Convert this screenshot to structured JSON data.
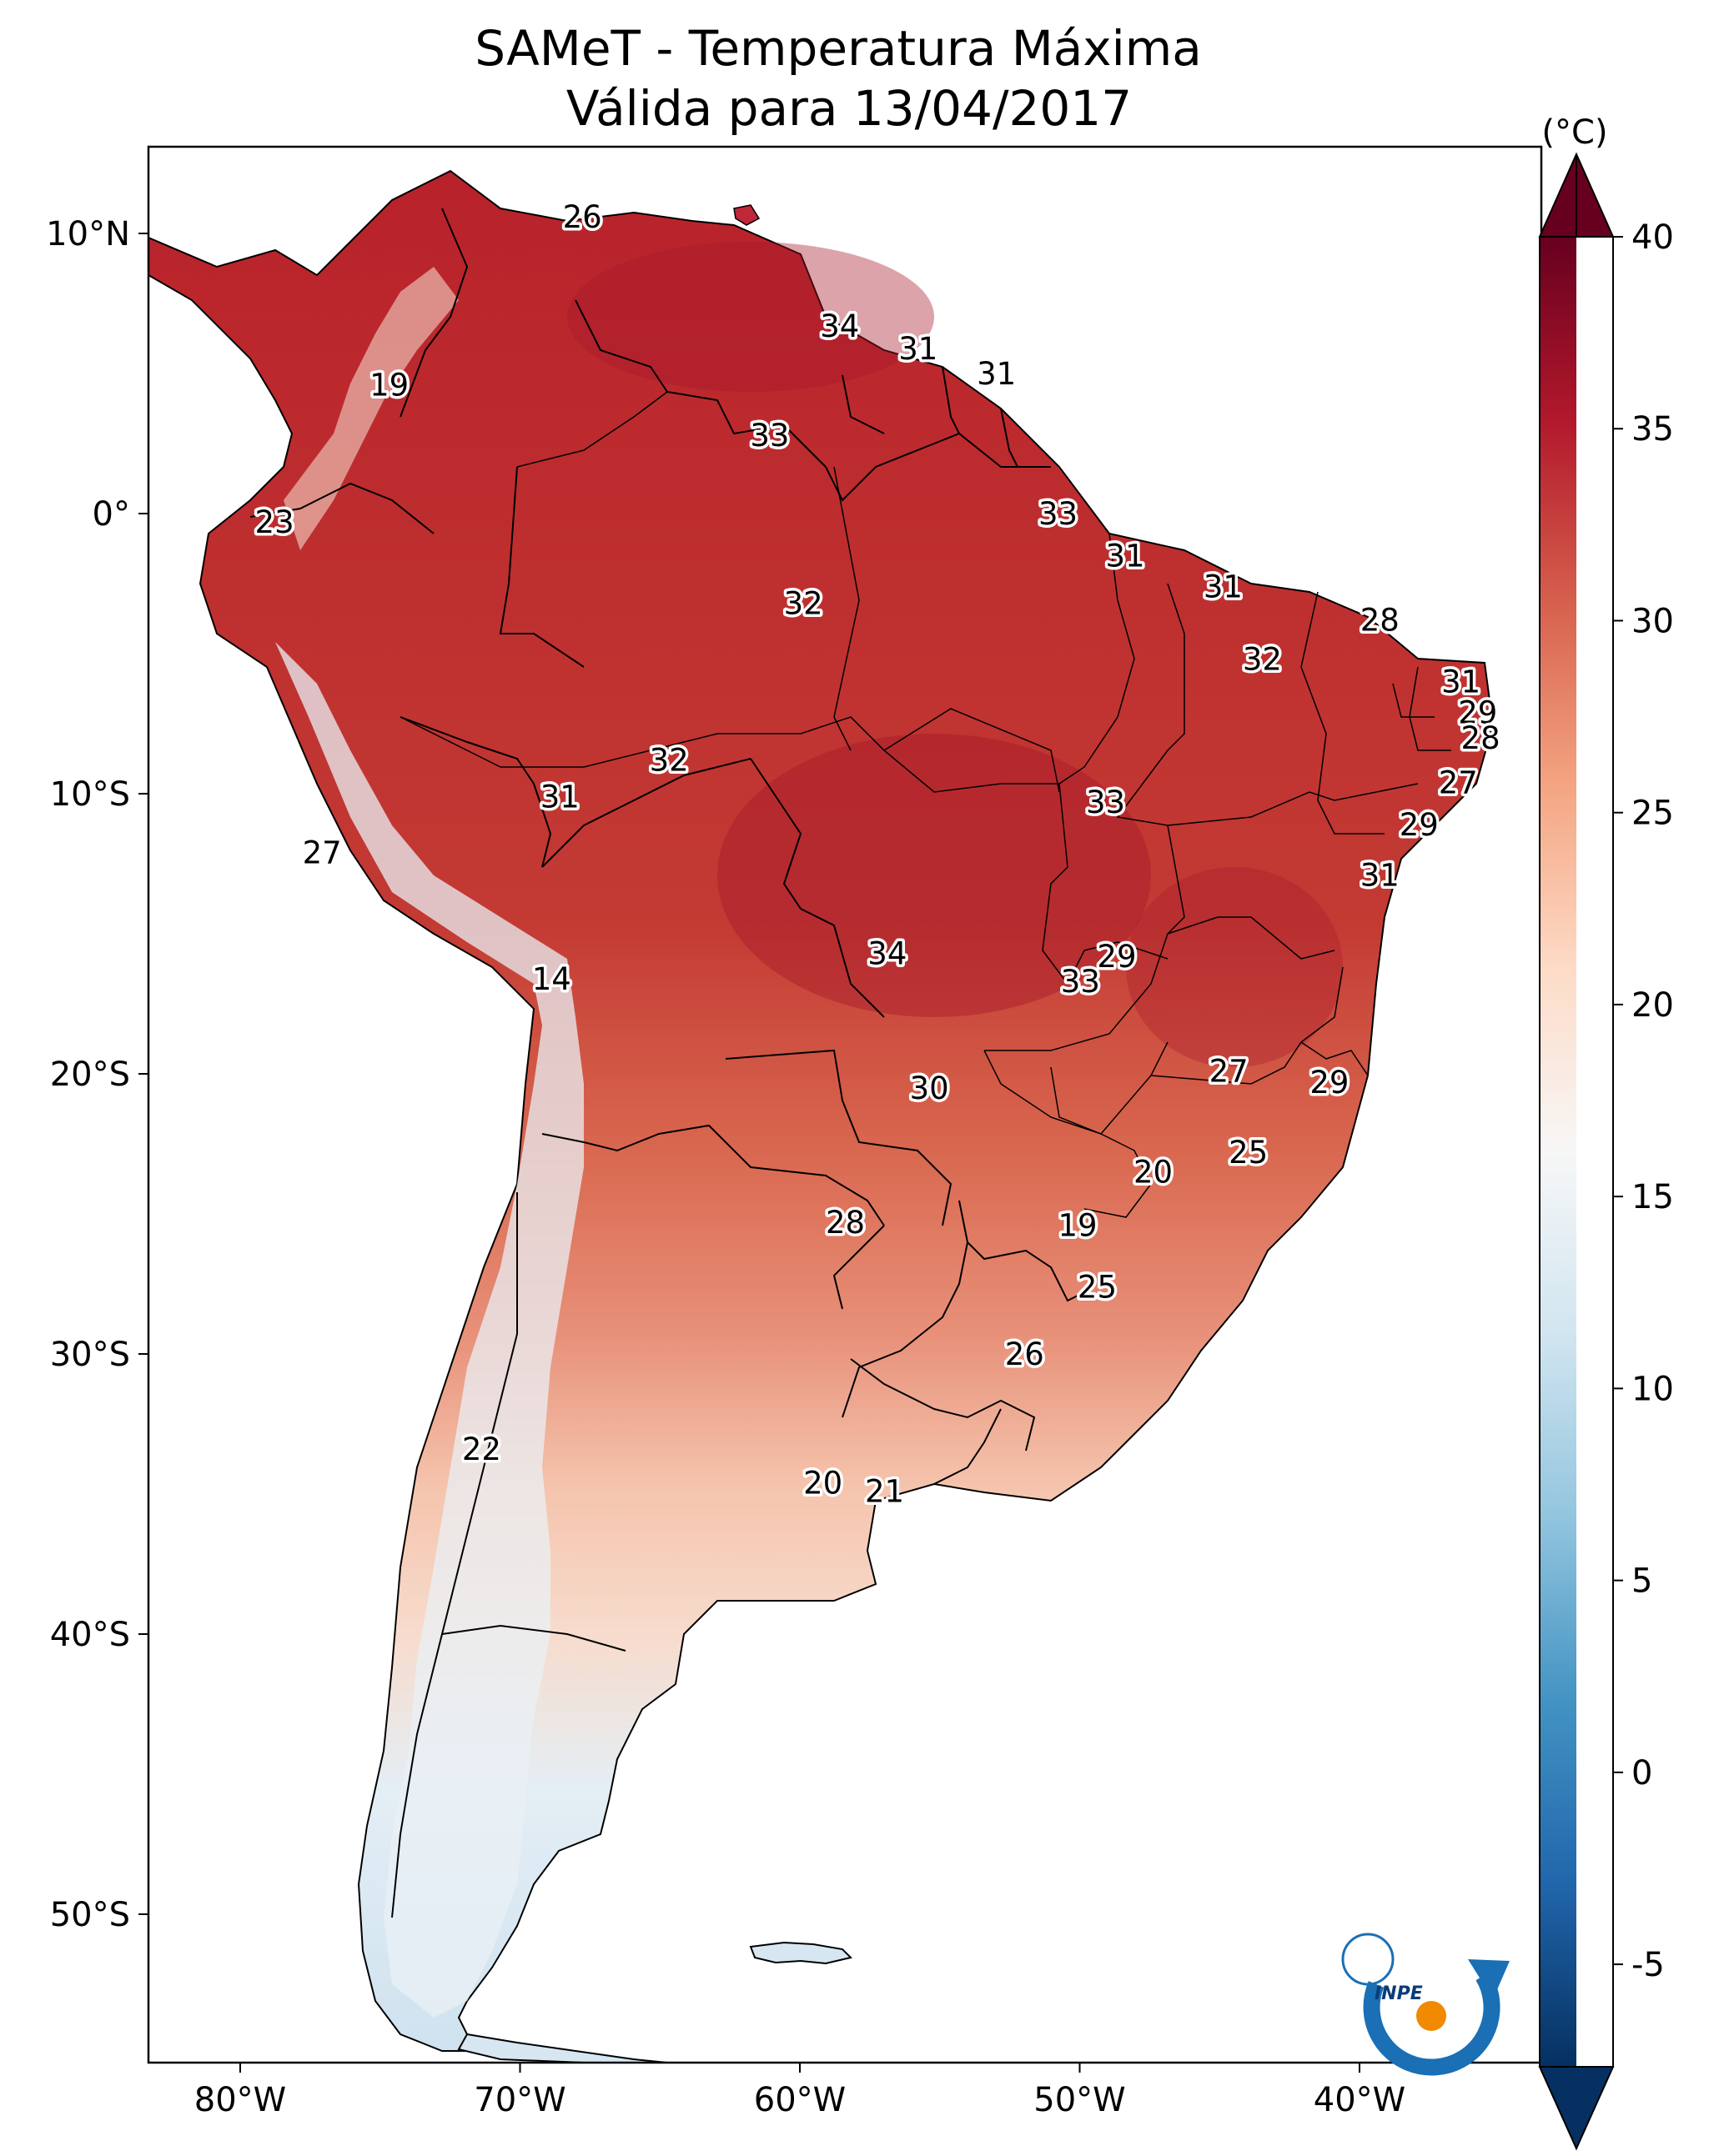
{
  "title_line1": "SAMeT - Temperatura Máxima",
  "title_line2": "Válida para 13/04/2017",
  "colorbar": {
    "unit_label": "(°C)",
    "ticks": [
      "40",
      "35",
      "30",
      "25",
      "20",
      "15",
      "10",
      "5",
      "0",
      "-5"
    ],
    "range": [
      -5,
      40
    ],
    "colors": [
      "#053061",
      "#2166ac",
      "#4393c3",
      "#92c5de",
      "#d1e5f0",
      "#f7f7f7",
      "#fddbc7",
      "#f4a582",
      "#d6604d",
      "#b2182b",
      "#67001f"
    ]
  },
  "axes": {
    "lat_labels": [
      "10°N",
      "0°",
      "10°S",
      "20°S",
      "30°S",
      "40°S",
      "50°S"
    ],
    "lon_labels": [
      "80°W",
      "70°W",
      "60°W",
      "50°W",
      "40°W"
    ]
  },
  "station_labels": [
    {
      "value": "26",
      "lon": -67.0,
      "lat": 10.6
    },
    {
      "value": "34",
      "lon": -57.8,
      "lat": 6.7
    },
    {
      "value": "31",
      "lon": -55.0,
      "lat": 5.9
    },
    {
      "value": "31",
      "lon": -52.2,
      "lat": 5.0
    },
    {
      "value": "19",
      "lon": -73.9,
      "lat": 4.6
    },
    {
      "value": "33",
      "lon": -60.3,
      "lat": 2.8
    },
    {
      "value": "33",
      "lon": -50.0,
      "lat": 0.0
    },
    {
      "value": "23",
      "lon": -78.0,
      "lat": -0.3
    },
    {
      "value": "31",
      "lon": -47.6,
      "lat": -1.5
    },
    {
      "value": "31",
      "lon": -44.1,
      "lat": -2.6
    },
    {
      "value": "32",
      "lon": -59.1,
      "lat": -3.2
    },
    {
      "value": "28",
      "lon": -38.5,
      "lat": -3.8
    },
    {
      "value": "32",
      "lon": -42.7,
      "lat": -5.2
    },
    {
      "value": "31",
      "lon": -35.6,
      "lat": -6.0
    },
    {
      "value": "29",
      "lon": -35.0,
      "lat": -7.1
    },
    {
      "value": "28",
      "lon": -34.9,
      "lat": -8.0
    },
    {
      "value": "32",
      "lon": -63.9,
      "lat": -8.8
    },
    {
      "value": "27",
      "lon": -35.7,
      "lat": -9.6
    },
    {
      "value": "31",
      "lon": -67.8,
      "lat": -10.1
    },
    {
      "value": "33",
      "lon": -48.3,
      "lat": -10.3
    },
    {
      "value": "29",
      "lon": -37.1,
      "lat": -11.1
    },
    {
      "value": "27",
      "lon": -76.3,
      "lat": -12.1
    },
    {
      "value": "31",
      "lon": -38.5,
      "lat": -12.9
    },
    {
      "value": "34",
      "lon": -56.1,
      "lat": -15.7
    },
    {
      "value": "29",
      "lon": -47.9,
      "lat": -15.8
    },
    {
      "value": "33",
      "lon": -49.2,
      "lat": -16.7
    },
    {
      "value": "14",
      "lon": -68.1,
      "lat": -16.6
    },
    {
      "value": "27",
      "lon": -43.9,
      "lat": -19.9
    },
    {
      "value": "29",
      "lon": -40.3,
      "lat": -20.3
    },
    {
      "value": "30",
      "lon": -54.6,
      "lat": -20.5
    },
    {
      "value": "25",
      "lon": -43.2,
      "lat": -22.8
    },
    {
      "value": "20",
      "lon": -46.6,
      "lat": -23.5
    },
    {
      "value": "28",
      "lon": -57.6,
      "lat": -25.3
    },
    {
      "value": "19",
      "lon": -49.3,
      "lat": -25.4
    },
    {
      "value": "25",
      "lon": -48.6,
      "lat": -27.6
    },
    {
      "value": "26",
      "lon": -51.2,
      "lat": -30.0
    },
    {
      "value": "22",
      "lon": -70.6,
      "lat": -33.4
    },
    {
      "value": "20",
      "lon": -58.4,
      "lat": -34.6
    },
    {
      "value": "21",
      "lon": -56.2,
      "lat": -34.9
    }
  ],
  "logo_text": "INPE"
}
